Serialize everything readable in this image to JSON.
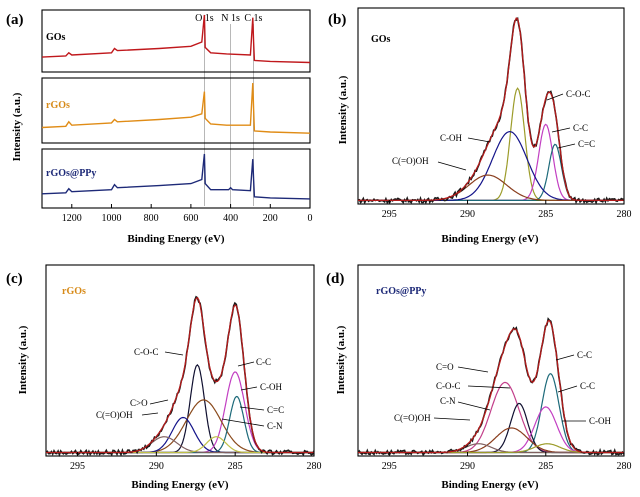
{
  "chart_data": [
    {
      "panel": "(a)",
      "type": "line",
      "title": "",
      "xlabel": "Binding Energy (eV)",
      "ylabel": "Intensity (a.u.)",
      "xlim": [
        1350,
        0
      ],
      "x_ticks": [
        1200,
        1000,
        800,
        600,
        400,
        200,
        0
      ],
      "peak_markers": [
        {
          "label": "O 1s",
          "x": 532
        },
        {
          "label": "N 1s",
          "x": 400
        },
        {
          "label": "C 1s",
          "x": 285
        }
      ],
      "series": [
        {
          "name": "GOs",
          "color": "#c0181c",
          "points": [
            [
              1350,
              0.22
            ],
            [
              1230,
              0.24
            ],
            [
              1215,
              0.3
            ],
            [
              1200,
              0.26
            ],
            [
              1000,
              0.3
            ],
            [
              985,
              0.38
            ],
            [
              970,
              0.34
            ],
            [
              760,
              0.38
            ],
            [
              600,
              0.42
            ],
            [
              545,
              0.5
            ],
            [
              532,
              1.0
            ],
            [
              528,
              0.4
            ],
            [
              500,
              0.3
            ],
            [
              420,
              0.28
            ],
            [
              300,
              0.26
            ],
            [
              288,
              0.95
            ],
            [
              284,
              0.5
            ],
            [
              280,
              0.16
            ],
            [
              200,
              0.14
            ],
            [
              0,
              0.12
            ]
          ]
        },
        {
          "name": "rGOs",
          "color": "#e08c16",
          "points": [
            [
              1350,
              0.22
            ],
            [
              1230,
              0.24
            ],
            [
              1215,
              0.32
            ],
            [
              1200,
              0.26
            ],
            [
              1000,
              0.3
            ],
            [
              985,
              0.36
            ],
            [
              970,
              0.32
            ],
            [
              760,
              0.36
            ],
            [
              600,
              0.4
            ],
            [
              545,
              0.46
            ],
            [
              532,
              0.85
            ],
            [
              528,
              0.38
            ],
            [
              500,
              0.28
            ],
            [
              420,
              0.26
            ],
            [
              300,
              0.26
            ],
            [
              288,
              1.0
            ],
            [
              284,
              0.55
            ],
            [
              280,
              0.16
            ],
            [
              200,
              0.14
            ],
            [
              0,
              0.12
            ]
          ]
        },
        {
          "name": "rGOs@PPy",
          "color": "#1e2a78",
          "points": [
            [
              1350,
              0.22
            ],
            [
              1230,
              0.24
            ],
            [
              1215,
              0.32
            ],
            [
              1200,
              0.26
            ],
            [
              1000,
              0.3
            ],
            [
              985,
              0.4
            ],
            [
              970,
              0.34
            ],
            [
              760,
              0.38
            ],
            [
              600,
              0.42
            ],
            [
              545,
              0.5
            ],
            [
              532,
              1.0
            ],
            [
              528,
              0.42
            ],
            [
              500,
              0.3
            ],
            [
              410,
              0.3
            ],
            [
              400,
              0.34
            ],
            [
              390,
              0.3
            ],
            [
              300,
              0.28
            ],
            [
              288,
              0.9
            ],
            [
              284,
              0.5
            ],
            [
              280,
              0.16
            ],
            [
              200,
              0.14
            ],
            [
              0,
              0.12
            ]
          ]
        }
      ]
    },
    {
      "panel": "(b)",
      "type": "line",
      "title": "GOs",
      "xlabel": "Binding Energy (eV)",
      "ylabel": "Intensity (a.u.)",
      "xlim": [
        297,
        280
      ],
      "ylim": [
        0,
        1.05
      ],
      "x_ticks": [
        295,
        290,
        285,
        280
      ],
      "baseline": 0.02,
      "envelope_color": "#b31b1b",
      "components": [
        {
          "label": "C-O-C",
          "center": 286.8,
          "height": 0.62,
          "sigma": 0.45,
          "color": "#9c9c2a"
        },
        {
          "label": "C-C",
          "center": 285.0,
          "height": 0.42,
          "sigma": 0.45,
          "color": "#c23fc2"
        },
        {
          "label": "C=C",
          "center": 284.4,
          "height": 0.31,
          "sigma": 0.4,
          "color": "#1d6a7a"
        },
        {
          "label": "C-OH",
          "center": 287.3,
          "height": 0.38,
          "sigma": 1.1,
          "color": "#14148a"
        },
        {
          "label": "C(=O)OH",
          "center": 288.7,
          "height": 0.14,
          "sigma": 1.2,
          "color": "#8a3e1e"
        }
      ]
    },
    {
      "panel": "(c)",
      "type": "line",
      "title": "rGOs",
      "xlabel": "Binding Energy (eV)",
      "ylabel": "Intensity (a.u.)",
      "xlim": [
        297,
        280
      ],
      "ylim": [
        0,
        1.05
      ],
      "x_ticks": [
        295,
        290,
        285,
        280
      ],
      "baseline": 0.02,
      "envelope_color": "#b31b1b",
      "components": [
        {
          "label": "C-O-C",
          "center": 287.4,
          "height": 0.5,
          "sigma": 0.45,
          "color": "#101030"
        },
        {
          "label": "C-C",
          "center": 285.0,
          "height": 0.46,
          "sigma": 0.6,
          "color": "#c23fc2"
        },
        {
          "label": "C-OH",
          "center": 287.0,
          "height": 0.3,
          "sigma": 1.1,
          "color": "#8a4a1c"
        },
        {
          "label": "C=C",
          "center": 284.9,
          "height": 0.32,
          "sigma": 0.45,
          "color": "#1d6a7a"
        },
        {
          "label": "C>O",
          "center": 288.3,
          "height": 0.2,
          "sigma": 0.7,
          "color": "#14148a"
        },
        {
          "label": "C(=O)OH",
          "center": 289.5,
          "height": 0.09,
          "sigma": 0.8,
          "color": "#806060"
        },
        {
          "label": "C-N",
          "center": 286.2,
          "height": 0.09,
          "sigma": 0.6,
          "color": "#c0c048"
        }
      ]
    },
    {
      "panel": "(d)",
      "type": "line",
      "title": "rGOs@PPy",
      "xlabel": "Binding Energy (eV)",
      "ylabel": "Intensity (a.u.)",
      "xlim": [
        297,
        280
      ],
      "ylim": [
        0,
        1.05
      ],
      "x_ticks": [
        295,
        290,
        285,
        280
      ],
      "baseline": 0.02,
      "envelope_color": "#b31b1b",
      "components": [
        {
          "label": "C=O",
          "center": 287.6,
          "height": 0.4,
          "sigma": 0.9,
          "color": "#c23f8a"
        },
        {
          "label": "C-C",
          "center": 284.7,
          "height": 0.45,
          "sigma": 0.55,
          "color": "#1d6a7a"
        },
        {
          "label": "C-O-C",
          "center": 286.7,
          "height": 0.28,
          "sigma": 0.55,
          "color": "#101030"
        },
        {
          "label": "C-C",
          "center": 285.0,
          "height": 0.26,
          "sigma": 0.7,
          "color": "#c23fc2"
        },
        {
          "label": "C-N",
          "center": 287.2,
          "height": 0.14,
          "sigma": 1.0,
          "color": "#8a3e1e"
        },
        {
          "label": "C(=O)OH",
          "center": 289.3,
          "height": 0.05,
          "sigma": 0.8,
          "color": "#806060"
        },
        {
          "label": "C-OH",
          "center": 284.9,
          "height": 0.05,
          "sigma": 0.8,
          "color": "#9c9c2a"
        }
      ]
    }
  ]
}
